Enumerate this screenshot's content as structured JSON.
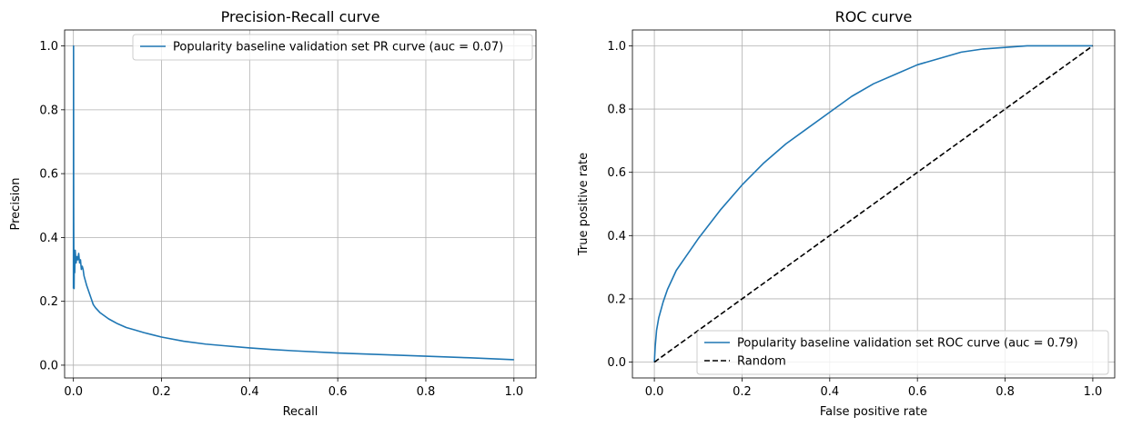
{
  "chart_data": [
    {
      "type": "line",
      "title": "Precision-Recall curve",
      "xlabel": "Recall",
      "ylabel": "Precision",
      "xlim": [
        -0.02,
        1.05
      ],
      "ylim": [
        -0.04,
        1.05
      ],
      "xticks": [
        0.0,
        0.2,
        0.4,
        0.6,
        0.8,
        1.0
      ],
      "xtick_labels": [
        "0.0",
        "0.2",
        "0.4",
        "0.6",
        "0.8",
        "1.0"
      ],
      "yticks": [
        0.0,
        0.2,
        0.4,
        0.6,
        0.8,
        1.0
      ],
      "ytick_labels": [
        "0.0",
        "0.2",
        "0.4",
        "0.6",
        "0.8",
        "1.0"
      ],
      "grid": true,
      "legend_position": "top-right",
      "series": [
        {
          "name": "Popularity baseline validation set PR curve (auc = 0.07)",
          "color": "#1f77b4",
          "style": "solid",
          "x": [
            0.0,
            0.0003,
            0.0006,
            0.001,
            0.0015,
            0.002,
            0.003,
            0.004,
            0.006,
            0.008,
            0.01,
            0.012,
            0.014,
            0.016,
            0.018,
            0.02,
            0.022,
            0.024,
            0.026,
            0.028,
            0.03,
            0.035,
            0.04,
            0.045,
            0.05,
            0.06,
            0.07,
            0.08,
            0.1,
            0.12,
            0.14,
            0.16,
            0.18,
            0.2,
            0.25,
            0.3,
            0.35,
            0.4,
            0.45,
            0.5,
            0.6,
            0.7,
            0.8,
            0.9,
            1.0
          ],
          "y": [
            0.24,
            1.0,
            0.5,
            0.3,
            0.24,
            0.34,
            0.29,
            0.36,
            0.32,
            0.34,
            0.33,
            0.35,
            0.32,
            0.33,
            0.3,
            0.31,
            0.3,
            0.28,
            0.27,
            0.26,
            0.25,
            0.23,
            0.21,
            0.19,
            0.18,
            0.165,
            0.155,
            0.145,
            0.13,
            0.118,
            0.11,
            0.102,
            0.095,
            0.088,
            0.075,
            0.066,
            0.06,
            0.054,
            0.049,
            0.045,
            0.038,
            0.033,
            0.028,
            0.023,
            0.017
          ]
        }
      ]
    },
    {
      "type": "line",
      "title": "ROC curve",
      "xlabel": "False positive rate",
      "ylabel": "True positive rate",
      "xlim": [
        -0.05,
        1.05
      ],
      "ylim": [
        -0.05,
        1.05
      ],
      "xticks": [
        0.0,
        0.2,
        0.4,
        0.6,
        0.8,
        1.0
      ],
      "xtick_labels": [
        "0.0",
        "0.2",
        "0.4",
        "0.6",
        "0.8",
        "1.0"
      ],
      "yticks": [
        0.0,
        0.2,
        0.4,
        0.6,
        0.8,
        1.0
      ],
      "ytick_labels": [
        "0.0",
        "0.2",
        "0.4",
        "0.6",
        "0.8",
        "1.0"
      ],
      "grid": true,
      "legend_position": "lower-right",
      "series": [
        {
          "name": "Popularity baseline validation set ROC curve (auc = 0.79)",
          "color": "#1f77b4",
          "style": "solid",
          "x": [
            0.0,
            0.002,
            0.005,
            0.01,
            0.02,
            0.03,
            0.05,
            0.07,
            0.1,
            0.15,
            0.2,
            0.25,
            0.3,
            0.35,
            0.4,
            0.45,
            0.5,
            0.55,
            0.6,
            0.65,
            0.7,
            0.75,
            0.8,
            0.85,
            0.9,
            0.95,
            1.0
          ],
          "y": [
            0.0,
            0.05,
            0.1,
            0.14,
            0.19,
            0.23,
            0.29,
            0.33,
            0.39,
            0.48,
            0.56,
            0.63,
            0.69,
            0.74,
            0.79,
            0.84,
            0.88,
            0.91,
            0.94,
            0.96,
            0.98,
            0.99,
            0.995,
            1.0,
            1.0,
            1.0,
            1.0
          ]
        },
        {
          "name": "Random",
          "color": "#000000",
          "style": "dashed",
          "x": [
            0.0,
            1.0
          ],
          "y": [
            0.0,
            1.0
          ]
        }
      ]
    }
  ]
}
